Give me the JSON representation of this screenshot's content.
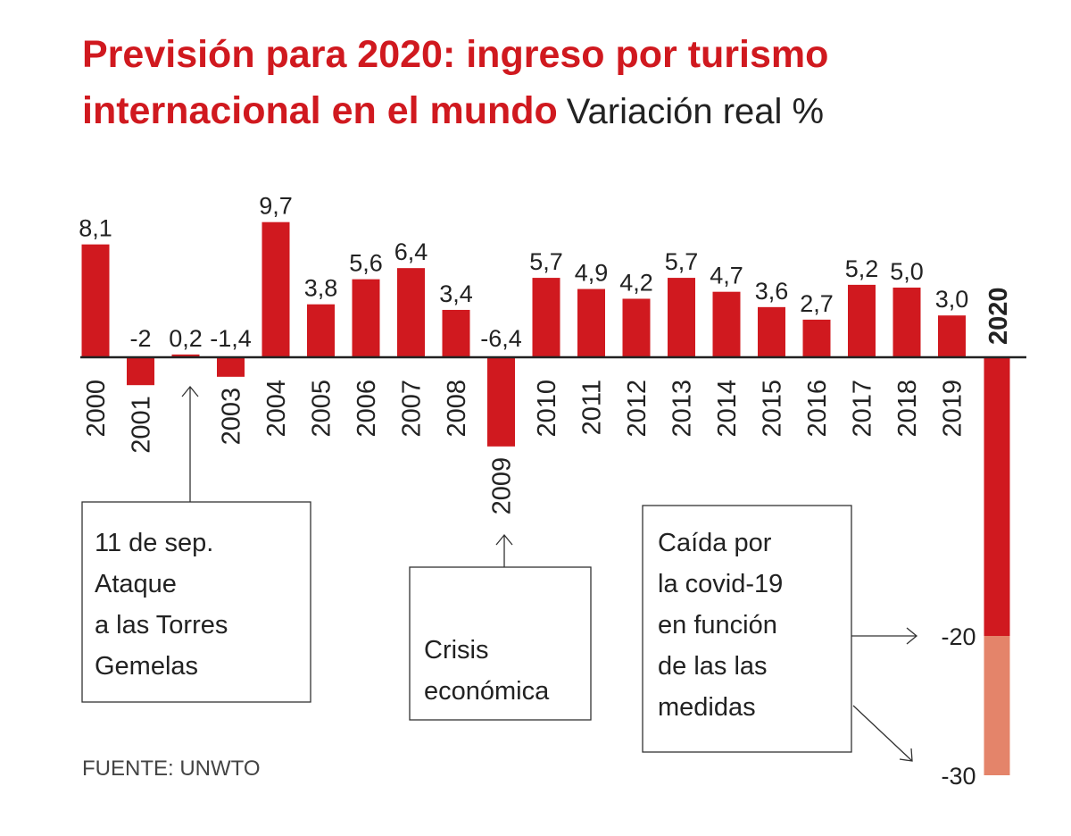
{
  "chart_data": {
    "type": "bar",
    "title": [
      "Previsión para 2020: ingreso por turismo",
      "internacional en el mundo"
    ],
    "subtitle": "Variación real %",
    "categories": [
      "2000",
      "2001",
      null,
      "2003",
      "2004",
      "2005",
      "2006",
      "2007",
      "2008",
      "2009",
      "2010",
      "2011",
      "2012",
      "2013",
      "2014",
      "2015",
      "2016",
      "2017",
      "2018",
      "2019"
    ],
    "values": [
      8.1,
      -2,
      0.2,
      -1.4,
      9.7,
      3.8,
      5.6,
      6.4,
      3.4,
      -6.4,
      5.7,
      4.9,
      4.2,
      5.7,
      4.7,
      3.6,
      2.7,
      5.2,
      5.0,
      3.0
    ],
    "value_labels": [
      "8,1",
      "-2",
      "0,2",
      "-1,4",
      "9,7",
      "3,8",
      "5,6",
      "6,4",
      "3,4",
      "-6,4",
      "5,7",
      "4,9",
      "4,2",
      "5,7",
      "4,7",
      "3,6",
      "2,7",
      "5,2",
      "5,0",
      "3,0"
    ],
    "color": "#d0191f",
    "forecast": {
      "category": "2020",
      "values": [
        -20,
        -30
      ],
      "colors": [
        "#d0191f",
        "#e4846a"
      ]
    },
    "ylim": [
      -30,
      10
    ],
    "annotations": [
      [
        "11 de sep.",
        "Ataque",
        "a las Torres",
        "Gemelas"
      ],
      [
        "Crisis",
        "económica"
      ],
      [
        "Caída por",
        "la covid-19",
        "en función",
        "de las las",
        "medidas"
      ]
    ],
    "source": "FUENTE: UNWTO"
  }
}
